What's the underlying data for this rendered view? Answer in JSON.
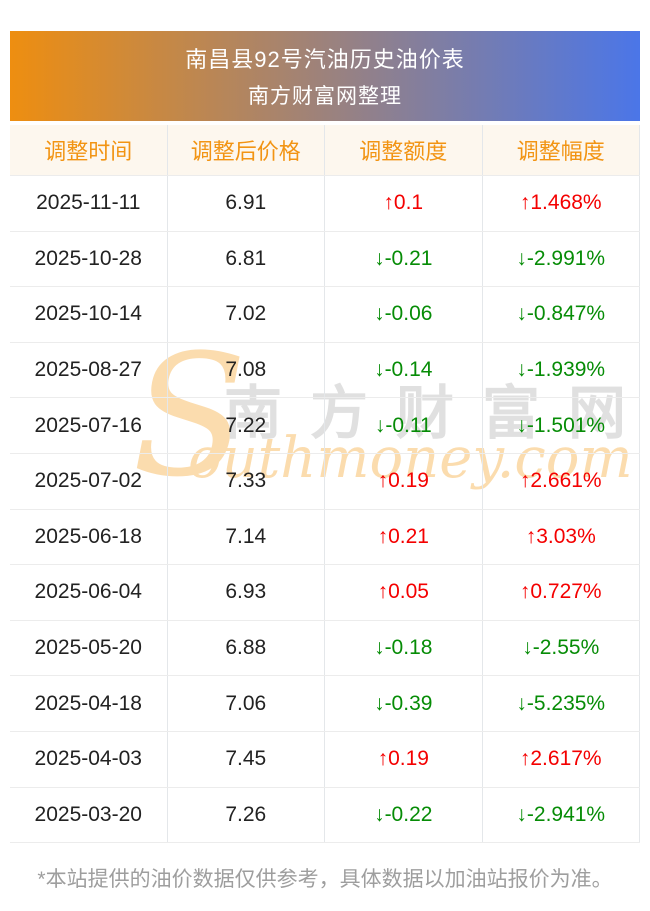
{
  "banner": {
    "title": "南昌县92号汽油历史油价表",
    "subtitle": "南方财富网整理"
  },
  "table": {
    "headers": [
      "调整时间",
      "调整后价格",
      "调整额度",
      "调整幅度"
    ],
    "rows": [
      {
        "date": "2025-11-11",
        "price": "6.91",
        "change": "↑0.1",
        "rate": "↑1.468%",
        "trend": "up"
      },
      {
        "date": "2025-10-28",
        "price": "6.81",
        "change": "↓-0.21",
        "rate": "↓-2.991%",
        "trend": "down"
      },
      {
        "date": "2025-10-14",
        "price": "7.02",
        "change": "↓-0.06",
        "rate": "↓-0.847%",
        "trend": "down"
      },
      {
        "date": "2025-08-27",
        "price": "7.08",
        "change": "↓-0.14",
        "rate": "↓-1.939%",
        "trend": "down"
      },
      {
        "date": "2025-07-16",
        "price": "7.22",
        "change": "↓-0.11",
        "rate": "↓-1.501%",
        "trend": "down"
      },
      {
        "date": "2025-07-02",
        "price": "7.33",
        "change": "↑0.19",
        "rate": "↑2.661%",
        "trend": "up"
      },
      {
        "date": "2025-06-18",
        "price": "7.14",
        "change": "↑0.21",
        "rate": "↑3.03%",
        "trend": "up"
      },
      {
        "date": "2025-06-04",
        "price": "6.93",
        "change": "↑0.05",
        "rate": "↑0.727%",
        "trend": "up"
      },
      {
        "date": "2025-05-20",
        "price": "6.88",
        "change": "↓-0.18",
        "rate": "↓-2.55%",
        "trend": "down"
      },
      {
        "date": "2025-04-18",
        "price": "7.06",
        "change": "↓-0.39",
        "rate": "↓-5.235%",
        "trend": "down"
      },
      {
        "date": "2025-04-03",
        "price": "7.45",
        "change": "↑0.19",
        "rate": "↑2.617%",
        "trend": "up"
      },
      {
        "date": "2025-03-20",
        "price": "7.26",
        "change": "↓-0.22",
        "rate": "↓-2.941%",
        "trend": "down"
      }
    ]
  },
  "watermark": {
    "s_glyph": "S",
    "chinese": "南方财富网",
    "english": "outhmoney.com"
  },
  "footer": {
    "note": "*本站提供的油价数据仅供参考，具体数据以加油站报价为准。"
  },
  "colors": {
    "up_red": "#f40000",
    "down_green": "#068c06",
    "header_text_orange": "#f29413",
    "header_bg_cream": "#fdf7ee",
    "banner_gradient_left": "#ee8e10",
    "banner_gradient_right": "#4b76e8",
    "watermark_peach": "#fbdcae",
    "watermark_gray": "#e0e0e0",
    "footer_gray": "#9e9e9e"
  }
}
